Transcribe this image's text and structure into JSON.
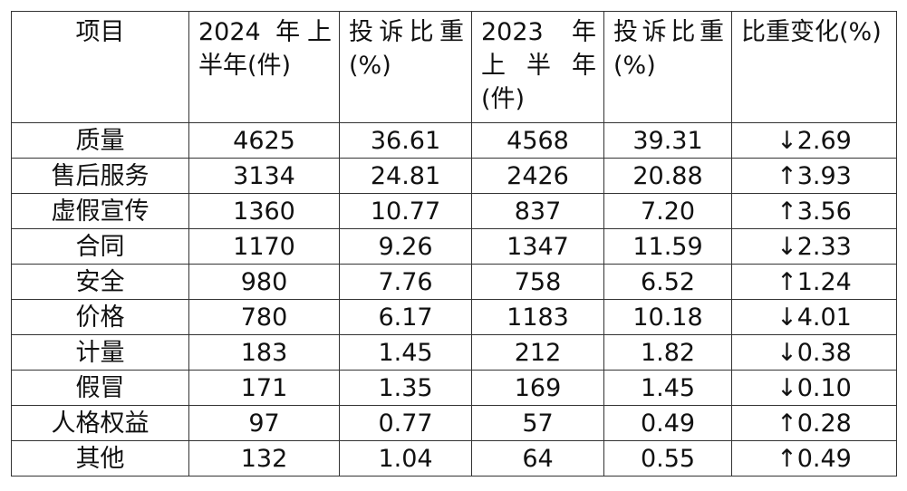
{
  "headers": [
    "项目",
    "2024 年上半年(件)",
    "投诉比重(%)",
    "2023 年上半年(件)",
    "投诉比重(%)",
    "比重变化(%)"
  ],
  "rows": [
    [
      "质量",
      "4625",
      "36.61",
      "4568",
      "39.31",
      "↓2.69"
    ],
    [
      "售后服务",
      "3134",
      "24.81",
      "2426",
      "20.88",
      "↑3.93"
    ],
    [
      "虚假宣传",
      "1360",
      "10.77",
      "837",
      "7.20",
      "↑3.56"
    ],
    [
      "合同",
      "1170",
      "9.26",
      "1347",
      "11.59",
      "↓2.33"
    ],
    [
      "安全",
      "980",
      "7.76",
      "758",
      "6.52",
      "↑1.24"
    ],
    [
      "价格",
      "780",
      "6.17",
      "1183",
      "10.18",
      "↓4.01"
    ],
    [
      "计量",
      "183",
      "1.45",
      "212",
      "1.82",
      "↓0.38"
    ],
    [
      "假冒",
      "171",
      "1.35",
      "169",
      "1.45",
      "↓0.10"
    ],
    [
      "人格权益",
      "97",
      "0.77",
      "57",
      "0.49",
      "↑0.28"
    ],
    [
      "其他",
      "132",
      "1.04",
      "64",
      "0.55",
      "↑0.49"
    ]
  ]
}
